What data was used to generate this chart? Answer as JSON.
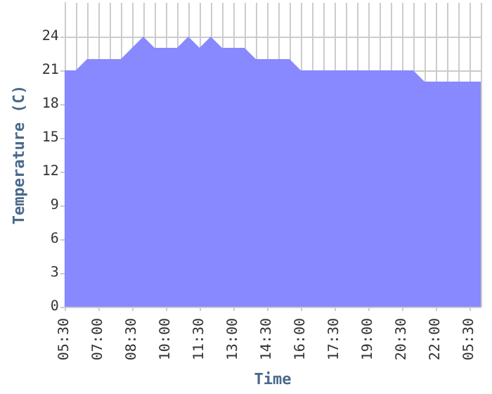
{
  "chart_data": {
    "type": "area",
    "xlabel": "Time",
    "ylabel": "Temperature (C)",
    "categories": [
      "05:30",
      null,
      null,
      "07:00",
      null,
      null,
      "08:30",
      null,
      null,
      "10:00",
      null,
      null,
      "11:30",
      null,
      null,
      "13:00",
      null,
      null,
      "14:30",
      null,
      null,
      "16:00",
      null,
      null,
      "17:30",
      null,
      null,
      "19:00",
      null,
      null,
      "20:30",
      null,
      null,
      "22:00",
      null,
      null,
      "05:30",
      null
    ],
    "series": [
      {
        "color": "#8888ff",
        "values": [
          21,
          21,
          22,
          22,
          22,
          22,
          23,
          24,
          23,
          23,
          23,
          24,
          23,
          24,
          23,
          23,
          23,
          22,
          22,
          22,
          22,
          21,
          21,
          21,
          21,
          21,
          21,
          21,
          21,
          21,
          21,
          21,
          20,
          20,
          20,
          20,
          20,
          20
        ]
      }
    ],
    "ylim": [
      0,
      27
    ],
    "yticks": [
      0,
      3,
      6,
      9,
      12,
      15,
      18,
      21,
      24
    ],
    "grid": true
  }
}
